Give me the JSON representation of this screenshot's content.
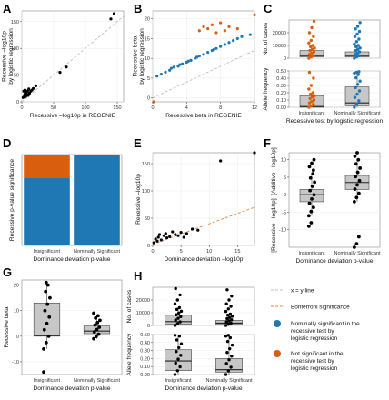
{
  "colors": {
    "blue": "#1f77b4",
    "orange": "#d95f0e",
    "black": "#000000",
    "box": "#c7c7c7",
    "identity": "#bfbfbf",
    "bonferroni": "#f08040"
  },
  "legend": {
    "identity": "x = y line",
    "bonferroni": "Bonferroni significance",
    "blue_line1": "Nominally significant in the",
    "blue_line2": "recessive test by",
    "blue_line3": "logistic regression",
    "orange_line1": "Not significant in the",
    "orange_line2": "recessive test by",
    "orange_line3": "logistic regression"
  },
  "chart_data": [
    {
      "panel": "A",
      "type": "scatter",
      "xlabel": "Recessive –log10p in REGENIE",
      "ylabel": "Recessive –log10p by logistic regression",
      "xlim": [
        0,
        160
      ],
      "ylim": [
        0,
        170
      ],
      "xticks": [
        0,
        50,
        100,
        150
      ],
      "yticks": [
        0,
        50,
        100,
        150
      ],
      "identity_line": true,
      "series": [
        {
          "color": "black",
          "x": [
            2,
            3,
            4,
            5,
            5,
            6,
            7,
            8,
            9,
            10,
            11,
            12,
            14,
            16,
            18,
            22,
            60,
            70,
            140,
            145
          ],
          "y": [
            8,
            20,
            12,
            15,
            22,
            10,
            18,
            14,
            20,
            12,
            24,
            16,
            20,
            22,
            25,
            30,
            55,
            65,
            155,
            165
          ]
        }
      ]
    },
    {
      "panel": "B",
      "type": "scatter",
      "xlabel": "Recessive beta in REGENIE",
      "ylabel": "Recessive beta by logistic regression",
      "xlim": [
        0,
        12
      ],
      "ylim": [
        -1,
        22
      ],
      "xticks": [
        0,
        4,
        8,
        12
      ],
      "yticks": [
        0,
        5,
        10,
        15,
        20
      ],
      "identity_line": true,
      "series": [
        {
          "color": "blue",
          "x": [
            0.5,
            1.0,
            1.5,
            2.0,
            2.2,
            2.5,
            3.0,
            3.2,
            3.5,
            4.0,
            4.2,
            4.5,
            5.0,
            5.2,
            5.5,
            6.0,
            6.5,
            7.0,
            7.2,
            7.5,
            8.0,
            8.5,
            9.0,
            9.5,
            10.0,
            10.5,
            11.5
          ],
          "y": [
            5.5,
            6.0,
            6.5,
            7.0,
            7.5,
            7.8,
            8.0,
            8.4,
            8.6,
            9.0,
            9.3,
            9.5,
            10.0,
            10.3,
            10.6,
            11.0,
            11.5,
            12.0,
            12.2,
            12.5,
            13.0,
            13.5,
            14.0,
            14.5,
            15.0,
            15.5,
            16.0
          ]
        },
        {
          "color": "orange",
          "x": [
            0.1,
            5.5,
            6.0,
            6.5,
            7.0,
            7.5,
            8.0,
            8.5,
            9.0,
            10.0,
            12.0
          ],
          "y": [
            -1.0,
            17.0,
            18.0,
            17.5,
            18.5,
            16.5,
            19.0,
            17.0,
            18.0,
            17.5,
            21.0
          ]
        }
      ]
    },
    {
      "panel": "C",
      "type": "box",
      "xlabel": "Recessive test by logistic regression",
      "categories": [
        "Insignificant",
        "Nominally Significant"
      ],
      "subplots": [
        {
          "ylabel": "No. of cases",
          "ylim": [
            0,
            30000
          ],
          "yticks": [
            0,
            10000,
            20000
          ],
          "ytick_labels": [
            "0",
            "10000",
            "20000"
          ],
          "boxes": [
            {
              "q1": 1000,
              "median": 2000,
              "q3": 6000,
              "whisker_low": 0,
              "whisker_high": 10000,
              "outliers": [
                12000,
                14000,
                17000,
                20000,
                24000,
                29000
              ],
              "color": "orange"
            },
            {
              "q1": 1000,
              "median": 2000,
              "q3": 5000,
              "whisker_low": 0,
              "whisker_high": 10000,
              "outliers": [
                11000,
                13000,
                15000,
                17000,
                19000,
                21000,
                23000,
                25000,
                28000
              ],
              "color": "blue"
            }
          ]
        },
        {
          "ylabel": "Allele frequency",
          "ylim": [
            0,
            0.5
          ],
          "yticks": [
            0,
            0.1,
            0.2,
            0.3,
            0.4,
            0.5
          ],
          "ytick_labels": [
            "0.00",
            "0.10",
            "0.20",
            "0.30",
            "0.40",
            "0.50"
          ],
          "boxes": [
            {
              "q1": 0.0,
              "median": 0.01,
              "q3": 0.16,
              "whisker_low": 0.0,
              "whisker_high": 0.2,
              "outliers": [
                0.25,
                0.3,
                0.4,
                0.48
              ],
              "color": "orange"
            },
            {
              "q1": 0.02,
              "median": 0.06,
              "q3": 0.28,
              "whisker_low": 0.0,
              "whisker_high": 0.45,
              "outliers": [
                0.47,
                0.48,
                0.49
              ],
              "color": "blue"
            }
          ]
        }
      ]
    },
    {
      "panel": "D",
      "type": "bar",
      "stacked": true,
      "xlabel": "Dominance deviation p-value",
      "ylabel": "Recessive p-value significance",
      "categories": [
        "Insignificant",
        "Nominally Significant"
      ],
      "series": [
        {
          "color": "blue",
          "values": [
            0.74,
            1.0
          ]
        },
        {
          "color": "orange",
          "values": [
            0.26,
            0.0
          ]
        }
      ]
    },
    {
      "panel": "E",
      "type": "scatter",
      "xlabel": "Dominance deviation –log10p",
      "ylabel": "Recessive –log10p",
      "xlim": [
        0,
        18
      ],
      "ylim": [
        0,
        170
      ],
      "xticks": [
        0,
        5,
        10,
        15
      ],
      "yticks": [
        0,
        50,
        100,
        150
      ],
      "bonferroni_line": true,
      "series": [
        {
          "color": "black",
          "x": [
            0.2,
            0.5,
            0.8,
            1,
            1.2,
            1.5,
            2,
            2.3,
            2.5,
            3,
            3.5,
            4,
            4.5,
            5,
            5.5,
            6,
            7,
            8,
            12,
            18
          ],
          "y": [
            5,
            12,
            8,
            15,
            20,
            10,
            18,
            22,
            14,
            16,
            25,
            20,
            18,
            24,
            15,
            22,
            30,
            28,
            155,
            170
          ]
        }
      ]
    },
    {
      "panel": "F",
      "type": "box",
      "xlabel": "Dominance deviation p-value",
      "ylabel": "[Recessive –log10p]–[Additive –log10p]",
      "categories": [
        "Insignificant",
        "Nominally Significant"
      ],
      "ylim": [
        -15,
        12
      ],
      "yticks": [
        -10,
        -5,
        0,
        5,
        10
      ],
      "boxes": [
        {
          "q1": -2,
          "median": 0,
          "q3": 1.5,
          "whisker_low": -6,
          "whisker_high": 6,
          "outliers": [
            -9,
            -8,
            7,
            8,
            9,
            10
          ],
          "color": "black"
        },
        {
          "q1": 1.5,
          "median": 3.5,
          "q3": 5.5,
          "whisker_low": -2,
          "whisker_high": 10,
          "outliers": [
            -15,
            -14,
            -12,
            11,
            12
          ],
          "color": "black"
        }
      ]
    },
    {
      "panel": "G",
      "type": "box",
      "xlabel": "Dominance deviation p-value",
      "ylabel": "Recessive beta",
      "categories": [
        "Insignificant",
        "Nominally Significant"
      ],
      "ylim": [
        -15,
        22
      ],
      "yticks": [
        -10,
        0,
        10,
        20
      ],
      "boxes": [
        {
          "q1": 0,
          "median": 0.3,
          "q3": 13,
          "whisker_low": -5,
          "whisker_high": 20,
          "outliers": [
            -14,
            21
          ],
          "color": "black"
        },
        {
          "q1": 1,
          "median": 2,
          "q3": 4,
          "whisker_low": -1,
          "whisker_high": 8,
          "outliers": [
            9
          ],
          "color": "black"
        }
      ]
    },
    {
      "panel": "H",
      "type": "box",
      "xlabel": "Dominance deviation p-value",
      "categories": [
        "Insignificant",
        "Nominally Significant"
      ],
      "subplots": [
        {
          "ylabel": "No. of cases",
          "ylim": [
            0,
            30000
          ],
          "yticks": [
            0,
            10000,
            20000
          ],
          "ytick_labels": [
            "0",
            "10000",
            "20000"
          ],
          "boxes": [
            {
              "q1": 1000,
              "median": 3000,
              "q3": 8000,
              "whisker_low": 0,
              "whisker_high": 14000,
              "outliers": [
                17000,
                20000,
                24000,
                29000
              ],
              "color": "black"
            },
            {
              "q1": 800,
              "median": 1800,
              "q3": 4000,
              "whisker_low": 0,
              "whisker_high": 9000,
              "outliers": [
                11000,
                13000,
                15000,
                17000,
                20000,
                23000,
                28000
              ],
              "color": "black"
            }
          ]
        },
        {
          "ylabel": "Allele frequency",
          "ylim": [
            0,
            0.5
          ],
          "yticks": [
            0,
            0.1,
            0.2,
            0.3,
            0.4,
            0.5
          ],
          "ytick_labels": [
            "0.00",
            "0.10",
            "0.20",
            "0.30",
            "0.40",
            "0.50"
          ],
          "boxes": [
            {
              "q1": 0.05,
              "median": 0.17,
              "q3": 0.31,
              "whisker_low": 0.0,
              "whisker_high": 0.48,
              "outliers": [
                0.49
              ],
              "color": "black"
            },
            {
              "q1": 0.03,
              "median": 0.06,
              "q3": 0.2,
              "whisker_low": 0.0,
              "whisker_high": 0.46,
              "outliers": [
                0.48,
                0.49
              ],
              "color": "black"
            }
          ]
        }
      ]
    }
  ]
}
